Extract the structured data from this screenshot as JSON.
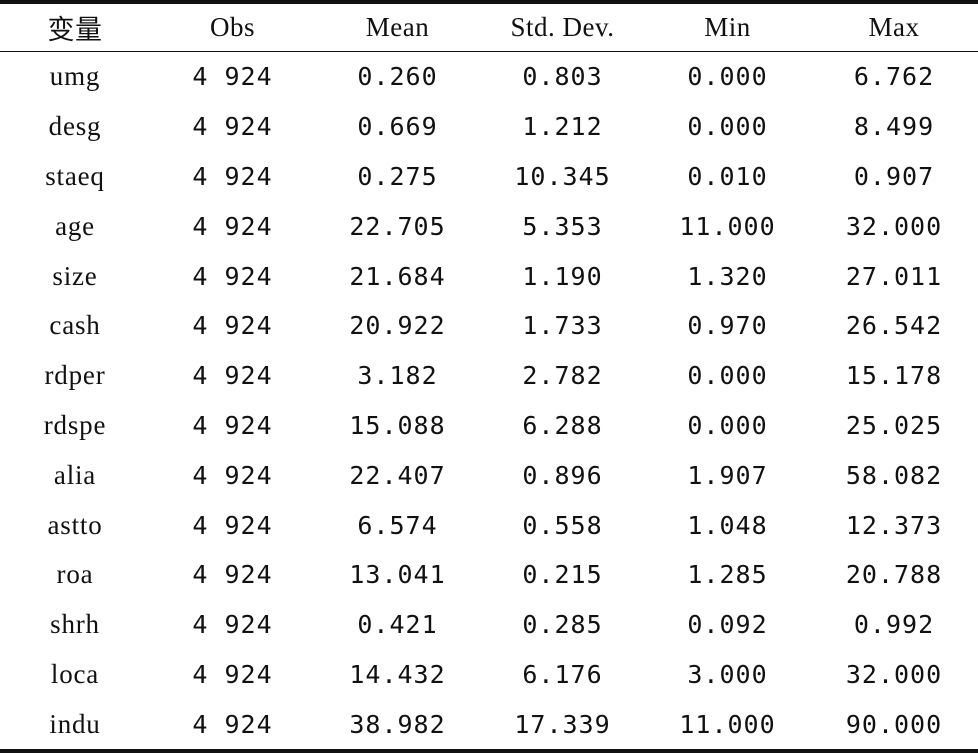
{
  "table": {
    "headers": [
      "变量",
      "Obs",
      "Mean",
      "Std. Dev.",
      "Min",
      "Max"
    ],
    "rows": [
      [
        "umg",
        "4 924",
        "0.260",
        "0.803",
        "0.000",
        "6.762"
      ],
      [
        "desg",
        "4 924",
        "0.669",
        "1.212",
        "0.000",
        "8.499"
      ],
      [
        "staeq",
        "4 924",
        "0.275",
        "10.345",
        "0.010",
        "0.907"
      ],
      [
        "age",
        "4 924",
        "22.705",
        "5.353",
        "11.000",
        "32.000"
      ],
      [
        "size",
        "4 924",
        "21.684",
        "1.190",
        "1.320",
        "27.011"
      ],
      [
        "cash",
        "4 924",
        "20.922",
        "1.733",
        "0.970",
        "26.542"
      ],
      [
        "rdper",
        "4 924",
        "3.182",
        "2.782",
        "0.000",
        "15.178"
      ],
      [
        "rdspe",
        "4 924",
        "15.088",
        "6.288",
        "0.000",
        "25.025"
      ],
      [
        "alia",
        "4 924",
        "22.407",
        "0.896",
        "1.907",
        "58.082"
      ],
      [
        "astto",
        "4 924",
        "6.574",
        "0.558",
        "1.048",
        "12.373"
      ],
      [
        "roa",
        "4 924",
        "13.041",
        "0.215",
        "1.285",
        "20.788"
      ],
      [
        "shrh",
        "4 924",
        "0.421",
        "0.285",
        "0.092",
        "0.992"
      ],
      [
        "loca",
        "4 924",
        "14.432",
        "6.176",
        "3.000",
        "32.000"
      ],
      [
        "indu",
        "4 924",
        "38.982",
        "17.339",
        "11.000",
        "90.000"
      ]
    ]
  }
}
